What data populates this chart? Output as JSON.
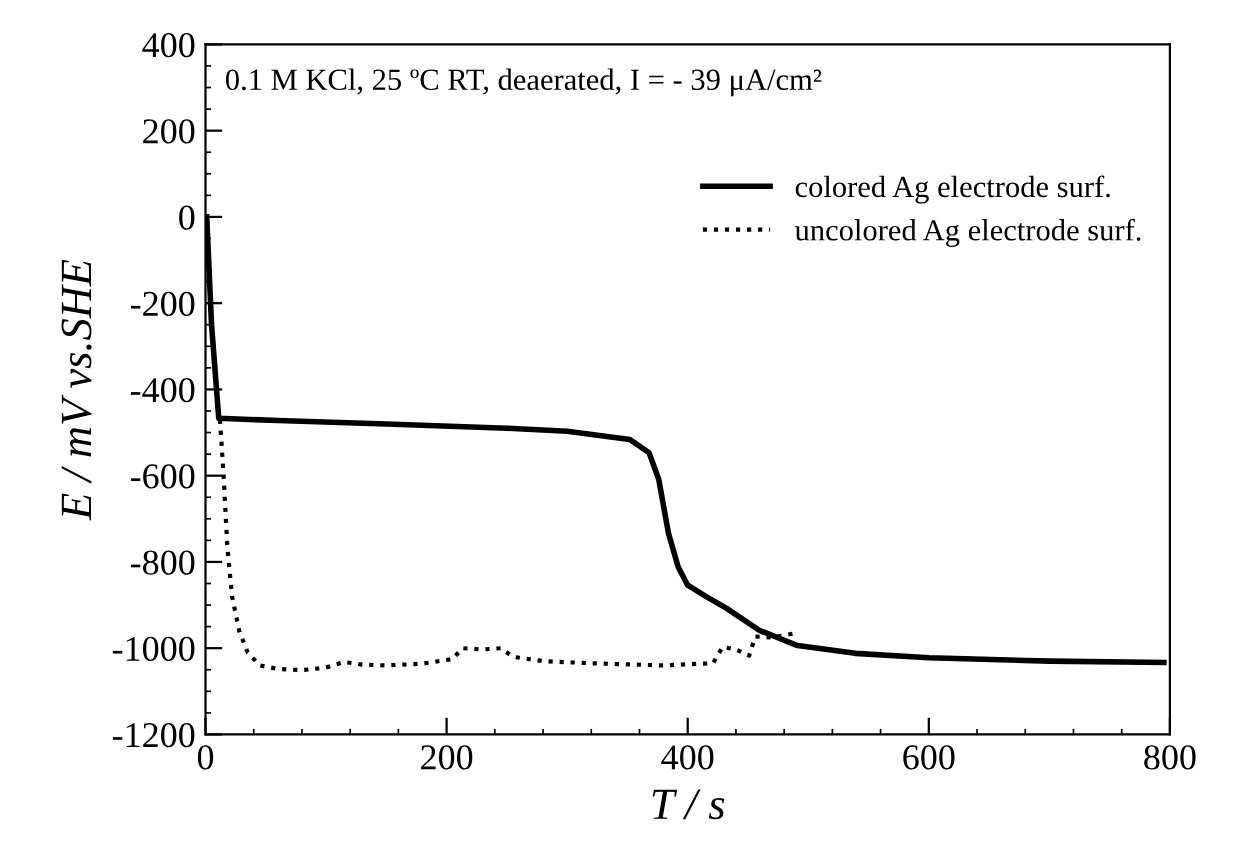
{
  "chart_data": {
    "type": "line",
    "xlabel": "T / s",
    "ylabel": "E / mV vs.SHE",
    "annotations": [
      "0.1 M KCl, 25 ºC RT, deaerated, I = - 39 μA/cm²"
    ],
    "xlim": [
      0,
      800
    ],
    "ylim": [
      -1200,
      400
    ],
    "xticks": [
      0,
      200,
      400,
      600,
      800
    ],
    "yticks": [
      -1200,
      -1000,
      -800,
      -600,
      -400,
      -200,
      0,
      200,
      400
    ],
    "grid": false,
    "legend": "top right",
    "marker": "none",
    "series": [
      {
        "name": "colored Ag electrode surf.",
        "color": "#000000",
        "line_style": "solid",
        "x": [
          1,
          5,
          11,
          60,
          150,
          250,
          300,
          352,
          368,
          376,
          384,
          392,
          400,
          415,
          432,
          459,
          491,
          539,
          600,
          700,
          795
        ],
        "values": [
          0,
          -250,
          -467,
          -472,
          -480,
          -490,
          -497,
          -516,
          -547,
          -609,
          -733,
          -811,
          -854,
          -880,
          -907,
          -958,
          -994,
          -1012,
          -1022,
          -1030,
          -1033
        ]
      },
      {
        "name": "uncolored Ag electrode surf.",
        "color": "#000000",
        "line_style": "dotted",
        "x": [
          12,
          15,
          18,
          22,
          28,
          35,
          45,
          60,
          80,
          100,
          115,
          130,
          150,
          180,
          205,
          213,
          230,
          245,
          255,
          280,
          320,
          380,
          410,
          421,
          429,
          440,
          451,
          456,
          470,
          488
        ],
        "values": [
          -470,
          -600,
          -760,
          -880,
          -960,
          -1010,
          -1040,
          -1048,
          -1051,
          -1045,
          -1032,
          -1038,
          -1040,
          -1036,
          -1025,
          -1000,
          -1003,
          -1000,
          -1020,
          -1030,
          -1035,
          -1040,
          -1036,
          -1035,
          -997,
          -1003,
          -1017,
          -973,
          -975,
          -966
        ]
      }
    ]
  }
}
